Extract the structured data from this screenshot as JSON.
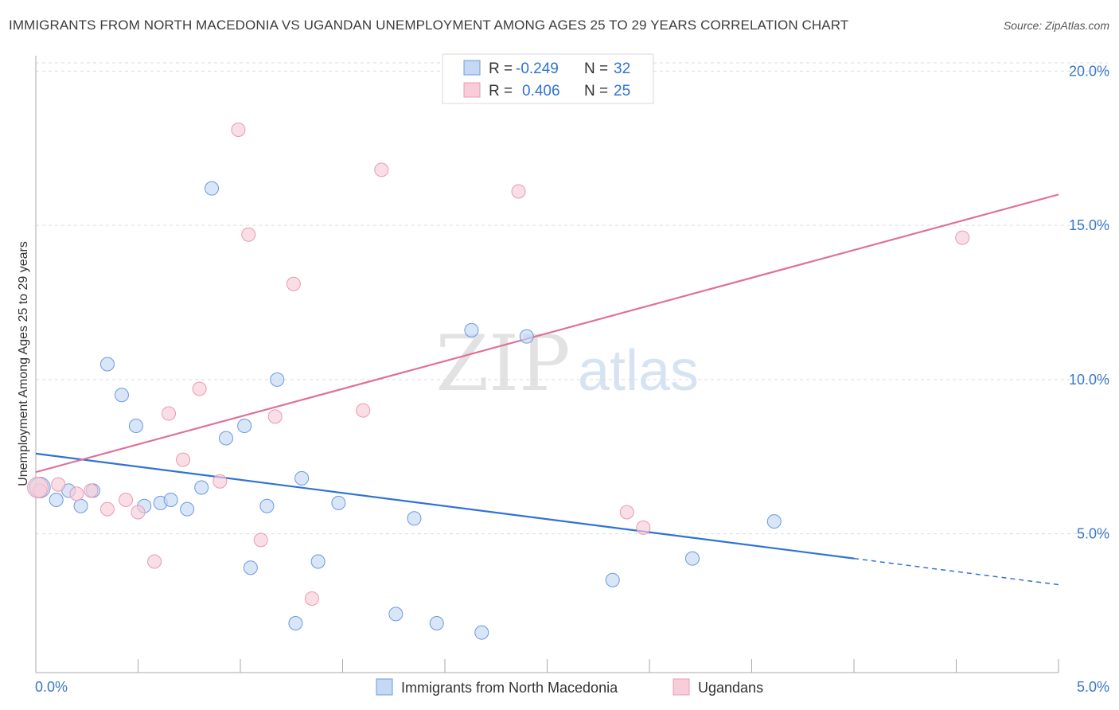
{
  "header": {
    "title": "IMMIGRANTS FROM NORTH MACEDONIA VS UGANDAN UNEMPLOYMENT AMONG AGES 25 TO 29 YEARS CORRELATION CHART",
    "source": "Source: ZipAtlas.com"
  },
  "watermark": {
    "zip": "ZIP",
    "atlas": "atlas"
  },
  "legend_top": {
    "series1": {
      "r_label": "R =",
      "r_value": "-0.249",
      "n_label": "N =",
      "n_value": "32"
    },
    "series2": {
      "r_label": "R =",
      "r_value": "0.406",
      "n_label": "N =",
      "n_value": "25"
    }
  },
  "chart_data": {
    "type": "scatter",
    "title": "IMMIGRANTS FROM NORTH MACEDONIA VS UGANDAN UNEMPLOYMENT AMONG AGES 25 TO 29 YEARS CORRELATION CHART",
    "xlabel": "",
    "ylabel": "Unemployment Among Ages 25 to 29 years",
    "xlim": [
      0,
      5
    ],
    "ylim": [
      0.5,
      20.5
    ],
    "x_tick_labels": [
      "0.0%",
      "5.0%"
    ],
    "y_ticks": [
      5,
      10,
      15,
      20
    ],
    "y_tick_labels": [
      "5.0%",
      "10.0%",
      "15.0%",
      "20.0%"
    ],
    "grid": true,
    "legend_position": "bottom",
    "series": [
      {
        "name": "Immigrants from North Macedonia",
        "color": "#6b9ae0",
        "fill": "#c5d9f5",
        "line_color": "#2f72d6",
        "r": -0.249,
        "n": 32,
        "trend": {
          "x0": 0,
          "y0": 7.6,
          "x1": 4.0,
          "y1": 4.2,
          "dash_to_x": 5.0,
          "dash_to_y": 3.35
        },
        "points": [
          [
            0.02,
            6.5
          ],
          [
            0.1,
            6.1
          ],
          [
            0.16,
            6.4
          ],
          [
            0.22,
            5.9
          ],
          [
            0.28,
            6.4
          ],
          [
            0.35,
            10.5
          ],
          [
            0.42,
            9.5
          ],
          [
            0.49,
            8.5
          ],
          [
            0.53,
            5.9
          ],
          [
            0.61,
            6.0
          ],
          [
            0.66,
            6.1
          ],
          [
            0.74,
            5.8
          ],
          [
            0.81,
            6.5
          ],
          [
            0.86,
            16.2
          ],
          [
            0.93,
            8.1
          ],
          [
            1.02,
            8.5
          ],
          [
            1.05,
            3.9
          ],
          [
            1.13,
            5.9
          ],
          [
            1.18,
            10.0
          ],
          [
            1.27,
            2.1
          ],
          [
            1.3,
            6.8
          ],
          [
            1.38,
            4.1
          ],
          [
            1.48,
            6.0
          ],
          [
            1.76,
            2.4
          ],
          [
            1.85,
            5.5
          ],
          [
            1.96,
            2.1
          ],
          [
            2.13,
            11.6
          ],
          [
            2.18,
            1.8
          ],
          [
            2.4,
            11.4
          ],
          [
            2.82,
            3.5
          ],
          [
            3.21,
            4.2
          ],
          [
            3.61,
            5.4
          ]
        ]
      },
      {
        "name": "Ugandans",
        "color": "#e89ab5",
        "fill": "#f8cdd9",
        "line_color": "#e0709a",
        "r": 0.406,
        "n": 25,
        "trend": {
          "x0": 0,
          "y0": 7.0,
          "x1": 5.0,
          "y1": 16.0
        },
        "points": [
          [
            0.02,
            6.4
          ],
          [
            0.11,
            6.6
          ],
          [
            0.2,
            6.3
          ],
          [
            0.27,
            6.4
          ],
          [
            0.35,
            5.8
          ],
          [
            0.44,
            6.1
          ],
          [
            0.5,
            5.7
          ],
          [
            0.58,
            4.1
          ],
          [
            0.65,
            8.9
          ],
          [
            0.72,
            7.4
          ],
          [
            0.8,
            9.7
          ],
          [
            0.9,
            6.7
          ],
          [
            0.99,
            18.1
          ],
          [
            1.04,
            14.7
          ],
          [
            1.1,
            4.8
          ],
          [
            1.17,
            8.8
          ],
          [
            1.26,
            13.1
          ],
          [
            1.35,
            2.9
          ],
          [
            1.6,
            9.0
          ],
          [
            1.69,
            16.8
          ],
          [
            2.36,
            16.1
          ],
          [
            2.89,
            5.7
          ],
          [
            2.97,
            5.2
          ],
          [
            4.53,
            14.6
          ],
          [
            0.01,
            6.5
          ]
        ]
      }
    ]
  }
}
